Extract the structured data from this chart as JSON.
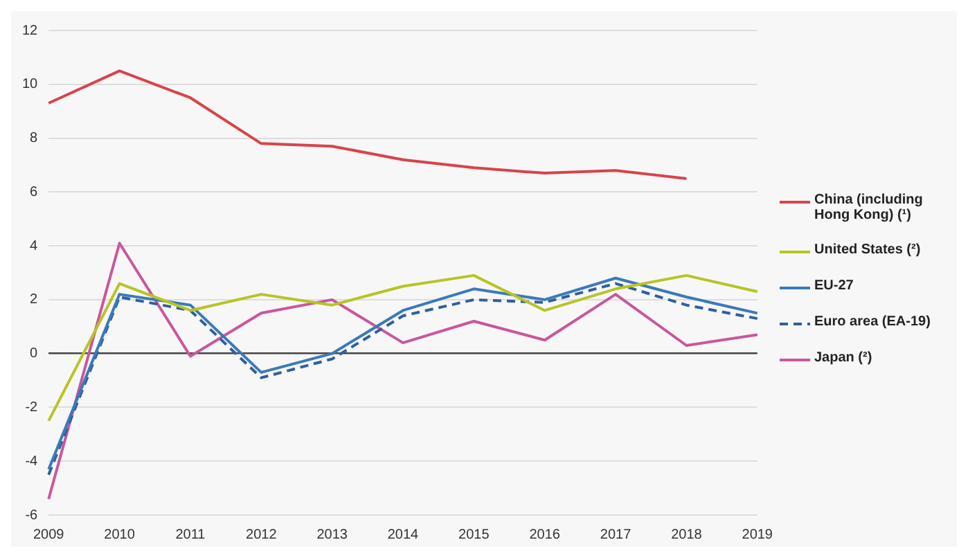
{
  "chart_data": {
    "type": "line",
    "categories": [
      "2009",
      "2010",
      "2011",
      "2012",
      "2013",
      "2014",
      "2015",
      "2016",
      "2017",
      "2018",
      "2019"
    ],
    "series": [
      {
        "name": "China (including Hong Kong) (¹)",
        "color": "#d9434a",
        "values": [
          9.3,
          10.5,
          9.5,
          7.8,
          7.7,
          7.2,
          6.9,
          6.7,
          6.8,
          6.5,
          null
        ]
      },
      {
        "name": "United States (²)",
        "color": "#b8c424",
        "values": [
          -2.5,
          2.6,
          1.6,
          2.2,
          1.8,
          2.5,
          2.9,
          1.6,
          2.4,
          2.9,
          2.3
        ]
      },
      {
        "name": "EU-27",
        "color": "#3a7ab8",
        "values": [
          -4.3,
          2.2,
          1.8,
          -0.7,
          0.0,
          1.6,
          2.4,
          2.0,
          2.8,
          2.1,
          1.5
        ]
      },
      {
        "name": "Euro area (EA-19)",
        "color": "#2f5f9e",
        "line_style": "dashed",
        "values": [
          -4.5,
          2.1,
          1.6,
          -0.9,
          -0.2,
          1.4,
          2.0,
          1.9,
          2.6,
          1.8,
          1.3
        ]
      },
      {
        "name": "Japan (²)",
        "color": "#c9579c",
        "values": [
          -5.4,
          4.1,
          -0.1,
          1.5,
          2.0,
          0.4,
          1.2,
          0.5,
          2.2,
          0.3,
          0.7
        ]
      }
    ],
    "ylim": [
      -6,
      12
    ],
    "yticks": [
      -6,
      -4,
      -2,
      0,
      2,
      4,
      6,
      8,
      10,
      12
    ],
    "grid": "y",
    "legend": "right",
    "marker": "none",
    "line_style": "solid"
  }
}
